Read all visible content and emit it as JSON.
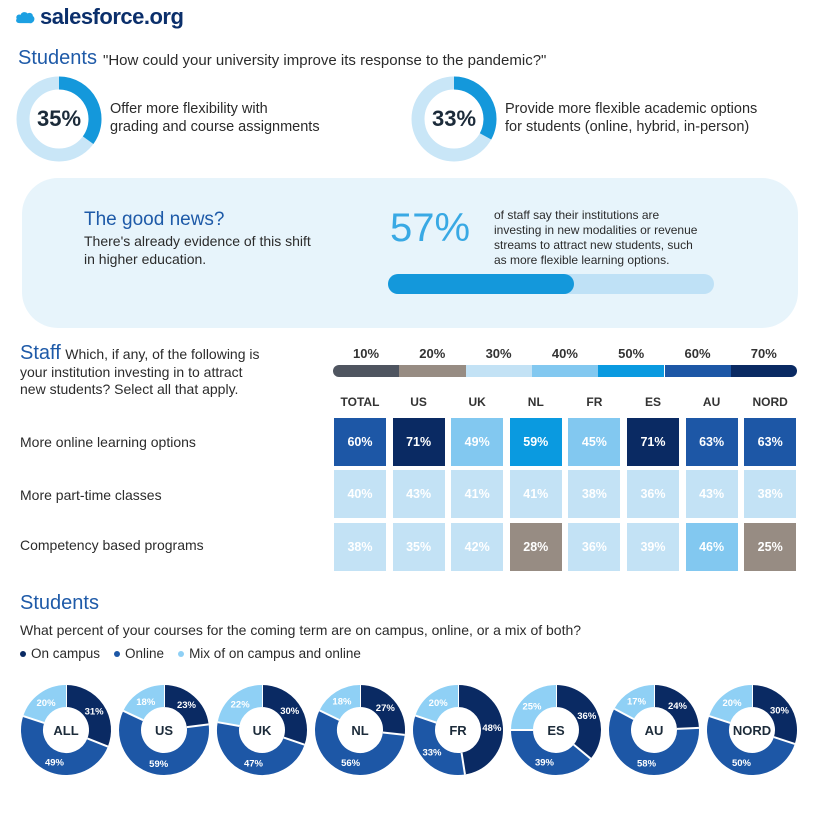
{
  "brand": {
    "name": "salesforce.org"
  },
  "students_top": {
    "title": "Students",
    "question": "\"How could your university improve its response to the pandemic?\"",
    "items": [
      {
        "pct": "35%",
        "value": 35,
        "text_line1": "Offer more flexibility with",
        "text_line2": "grading and course assignments"
      },
      {
        "pct": "33%",
        "value": 33,
        "text_line1": "Provide more flexible academic options",
        "text_line2": "for students (online, hybrid, in-person)"
      }
    ]
  },
  "good_news": {
    "title": "The good news?",
    "sub_line1": "There's already evidence of this shift",
    "sub_line2": "in higher education.",
    "stat": "57%",
    "stat_value": 57,
    "desc_line1": "of staff say their institutions are",
    "desc_line2": "investing in new modalities or revenue",
    "desc_line3": "streams to attract new students, such",
    "desc_line4": "as more flexible learning options."
  },
  "staff": {
    "title": "Staff",
    "q_line1": "Which, if any, of the following is",
    "q_line2": "your institution investing in to attract",
    "q_line3": "new students? Select all that apply."
  },
  "colors": {
    "p10": "#4f5560",
    "p20": "#978c83",
    "p30": "#c3e2f5",
    "p40": "#82c8f0",
    "p50": "#0a9ae0",
    "p60": "#1d57a6",
    "p70": "#0a2a63",
    "on_campus": "#0a2a63",
    "online": "#1d57a6",
    "mix": "#8fd0f5"
  },
  "chart_data": [
    {
      "type": "pie",
      "title": "Students",
      "subtitle": "\"How could your university improve its response to the pandemic?\"",
      "categories": [
        "Offer more flexibility with grading and course assignments",
        "Provide more flexible academic options for students (online, hybrid, in-person)"
      ],
      "values": [
        35,
        33
      ]
    },
    {
      "type": "bar",
      "subtitle": "of staff say their institutions are investing in new modalities or revenue streams to attract new students, such as more flexible learning options.",
      "values": [
        57
      ]
    },
    {
      "type": "heatmap",
      "title": "Staff",
      "subtitle": "Which, if any, of the following is your institution investing in to attract new students? Select all that apply.",
      "legend": [
        "10%",
        "20%",
        "30%",
        "40%",
        "50%",
        "60%",
        "70%"
      ],
      "columns": [
        "TOTAL",
        "US",
        "UK",
        "NL",
        "FR",
        "ES",
        "AU",
        "NORD"
      ],
      "rows": [
        {
          "label": "More online learning options",
          "values": [
            60,
            71,
            49,
            59,
            45,
            71,
            63,
            63
          ]
        },
        {
          "label": "More part-time classes",
          "values": [
            40,
            43,
            41,
            41,
            38,
            36,
            43,
            38
          ]
        },
        {
          "label": "Competency based programs",
          "values": [
            38,
            35,
            42,
            28,
            36,
            39,
            46,
            25
          ]
        }
      ]
    },
    {
      "type": "pie",
      "title": "Students",
      "subtitle": "What percent of your courses for the coming term are on campus, online, or a mix of both?",
      "legend": [
        "On campus",
        "Online",
        "Mix of on campus and online"
      ],
      "charts": [
        {
          "label": "ALL",
          "values": [
            31,
            49,
            20
          ]
        },
        {
          "label": "US",
          "values": [
            23,
            59,
            18
          ]
        },
        {
          "label": "UK",
          "values": [
            30,
            47,
            22
          ]
        },
        {
          "label": "NL",
          "values": [
            27,
            56,
            18
          ]
        },
        {
          "label": "FR",
          "values": [
            48,
            33,
            20
          ]
        },
        {
          "label": "ES",
          "values": [
            36,
            39,
            25
          ]
        },
        {
          "label": "AU",
          "values": [
            24,
            58,
            17
          ]
        },
        {
          "label": "NORD",
          "values": [
            30,
            50,
            20
          ]
        }
      ]
    }
  ]
}
